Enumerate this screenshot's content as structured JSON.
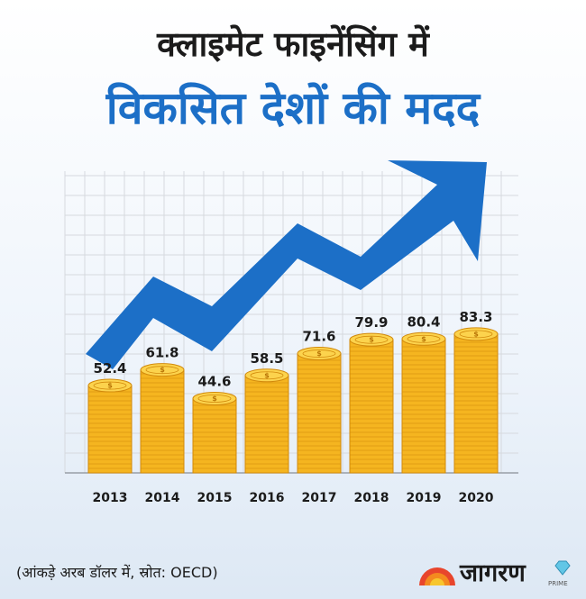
{
  "header": {
    "title_line1": "क्लाइमेट फाइनेंसिंग में",
    "title_line2": "विकसित देशों की मदद"
  },
  "chart_data": {
    "type": "bar",
    "categories": [
      "2013",
      "2014",
      "2015",
      "2016",
      "2017",
      "2018",
      "2019",
      "2020"
    ],
    "values": [
      52.4,
      61.8,
      44.6,
      58.5,
      71.6,
      79.9,
      80.4,
      83.3
    ],
    "title": "विकसित देशों की मदद",
    "xlabel": "",
    "ylabel": "",
    "grid": true,
    "legend": "none",
    "colors": {
      "coin": "#f5b520",
      "coin_edge": "#d28a0c",
      "arrow": "#1c6fc7",
      "grid": "#d6d9de"
    }
  },
  "footer": {
    "note": "(आंकड़े अरब डॉलर में, स्रोत: OECD)",
    "brand": "जागरण",
    "brand_sub": "PRIME"
  }
}
